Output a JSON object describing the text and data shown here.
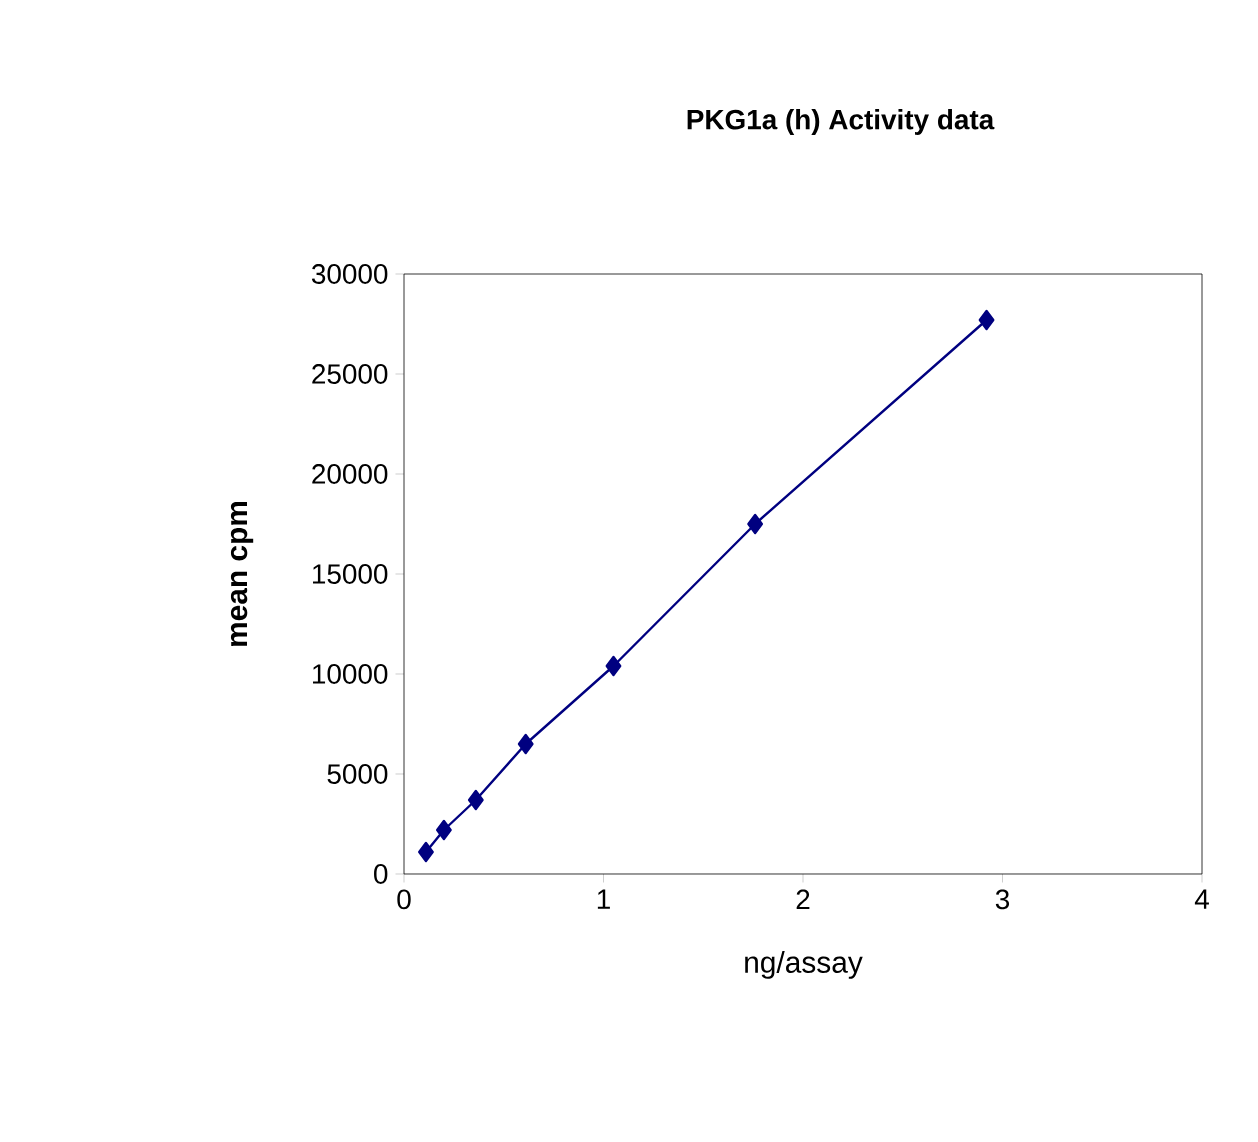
{
  "chart_data": {
    "type": "line",
    "title": "PKG1a (h) Activity data",
    "xlabel": "ng/assay",
    "ylabel": "mean cpm",
    "x": [
      0.11,
      0.2,
      0.36,
      0.61,
      1.05,
      1.76,
      2.92
    ],
    "series": [
      {
        "color": "#000080",
        "values": [
          1100,
          2200,
          3700,
          6500,
          10400,
          17500,
          27700
        ]
      }
    ],
    "xlim": [
      0,
      4
    ],
    "xticks": [
      0,
      1,
      2,
      3,
      4
    ],
    "ylim": [
      0,
      30000
    ],
    "yticks": [
      0,
      5000,
      10000,
      15000,
      20000,
      25000,
      30000
    ],
    "grid": false,
    "marker": "diamond",
    "line_style": "solid"
  }
}
